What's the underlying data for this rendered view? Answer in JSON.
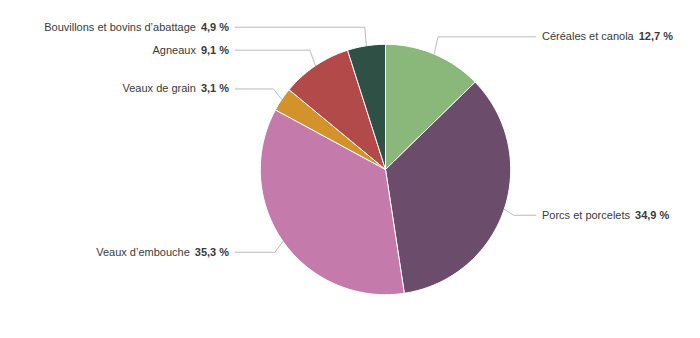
{
  "chart_data": {
    "type": "pie",
    "categories": [
      "Céréales et canola",
      "Porcs et porcelets",
      "Veaux d’embouche",
      "Veaux de grain",
      "Agneaux",
      "Bouvillons et bovins d’abattage"
    ],
    "values": [
      12.7,
      34.9,
      35.3,
      3.1,
      9.1,
      4.9
    ],
    "value_labels": [
      "12,7 %",
      "34,9 %",
      "35,3 %",
      "3,1 %",
      "9,1 %",
      "4,9 %"
    ],
    "colors": [
      "#8ab87a",
      "#6b4c6b",
      "#c47aaa",
      "#d4922a",
      "#b34a4a",
      "#2e5045"
    ],
    "data_labels": true
  }
}
